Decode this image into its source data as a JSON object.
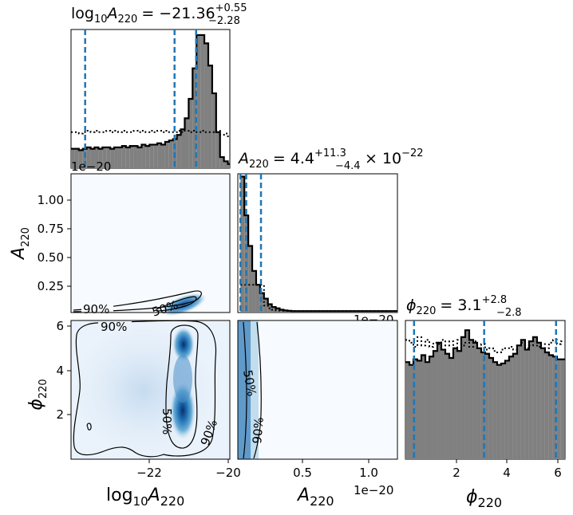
{
  "chart_data": {
    "type": "corner",
    "parameters": [
      "log10 A220",
      "A220",
      "phi220"
    ],
    "colors": {
      "histogram_fill": "#808080",
      "histogram_edge": "#000000",
      "quantile_line": "#1f77b4",
      "density_colormap": [
        "#f7fbff",
        "#c6dbef",
        "#6baed6",
        "#2171b5",
        "#08306b"
      ]
    },
    "panels": [
      {
        "id": "hist-log10A220",
        "type": "histogram",
        "title": {
          "prefix": "log",
          "base": "10",
          "var": "A",
          "sub": "220",
          "median": "= −21.36",
          "upper": "+0.55",
          "lower": "−2.28"
        },
        "median": -21.36,
        "quantiles": [
          -23.64,
          -21.36,
          -20.81
        ],
        "xlim": [
          -24.0,
          -19.95
        ],
        "ylim": [
          0,
          1.0
        ],
        "bins": {
          "start": -24.0,
          "width": 0.1
        },
        "posterior": [
          0.14,
          0.14,
          0.13,
          0.14,
          0.15,
          0.14,
          0.15,
          0.14,
          0.15,
          0.15,
          0.14,
          0.15,
          0.15,
          0.16,
          0.15,
          0.16,
          0.16,
          0.15,
          0.17,
          0.16,
          0.17,
          0.17,
          0.18,
          0.17,
          0.19,
          0.2,
          0.21,
          0.24,
          0.28,
          0.36,
          0.5,
          0.72,
          0.96,
          0.96,
          0.9,
          0.74,
          0.54,
          0.26,
          0.08,
          0.05,
          0.03,
          0.02
        ],
        "prior": [
          0.26,
          0.26,
          0.25,
          0.26,
          0.27,
          0.26,
          0.27,
          0.26,
          0.26,
          0.27,
          0.26,
          0.27,
          0.26,
          0.27,
          0.26,
          0.26,
          0.27,
          0.26,
          0.27,
          0.26,
          0.27,
          0.26,
          0.27,
          0.26,
          0.27,
          0.26,
          0.26,
          0.27,
          0.26,
          0.27,
          0.26,
          0.27,
          0.26,
          0.27,
          0.26,
          0.26,
          0.26,
          0.27,
          0.24,
          0.25,
          0.23,
          0.2
        ],
        "scale_text": "1e−20"
      },
      {
        "id": "hist-A220",
        "type": "histogram",
        "title": {
          "var": "A",
          "sub": "220",
          "median": "= 4.4",
          "upper": "+11.3",
          "lower": "−4.4",
          "factor": "× 10",
          "exponent": "−22"
        },
        "median": 0.044,
        "quantiles": [
          0.0,
          0.044,
          0.157
        ],
        "xlim": [
          -0.02,
          1.2
        ],
        "ylim": [
          0,
          1.0
        ],
        "bins": {
          "start": 0.0,
          "width": 0.03
        },
        "posterior": [
          0.98,
          0.7,
          0.48,
          0.3,
          0.2,
          0.14,
          0.1,
          0.06,
          0.04,
          0.03,
          0.02,
          0.015,
          0.012,
          0.01,
          0.01,
          0.01,
          0.01,
          0.01,
          0.01,
          0.01,
          0.01,
          0.01,
          0.01,
          0.01,
          0.01,
          0.01,
          0.01,
          0.01,
          0.01,
          0.01,
          0.01,
          0.01,
          0.01,
          0.01,
          0.01,
          0.01,
          0.01,
          0.01,
          0.01,
          0.01
        ],
        "prior": [
          0.2,
          0.2,
          0.2,
          0.2,
          0.2,
          0.2,
          0.05,
          0.03,
          0.02,
          0.015,
          0.013,
          0.012,
          0.011,
          0.011,
          0.011,
          0.011,
          0.011,
          0.011,
          0.011,
          0.011,
          0.011,
          0.011,
          0.011,
          0.011,
          0.011,
          0.011,
          0.011,
          0.011,
          0.011,
          0.011,
          0.011,
          0.011,
          0.011,
          0.011,
          0.011,
          0.011,
          0.011,
          0.011,
          0.011,
          0.011
        ],
        "scale_text": "1e−20"
      },
      {
        "id": "hist-phi220",
        "type": "histogram",
        "title": {
          "var": "ϕ",
          "sub": "220",
          "median": "= 3.1",
          "upper": "+2.8",
          "lower": "−2.8"
        },
        "median": 3.1,
        "quantiles": [
          0.34,
          3.1,
          5.93
        ],
        "xlim": [
          0.0,
          6.2832
        ],
        "ylim": [
          0,
          1.0
        ],
        "bins": {
          "start": 0.0,
          "width": 0.157
        },
        "posterior": [
          0.7,
          0.68,
          0.72,
          0.71,
          0.75,
          0.7,
          0.74,
          0.78,
          0.84,
          0.79,
          0.76,
          0.73,
          0.8,
          0.78,
          0.88,
          0.93,
          0.86,
          0.84,
          0.8,
          0.77,
          0.76,
          0.73,
          0.7,
          0.68,
          0.69,
          0.71,
          0.74,
          0.76,
          0.82,
          0.86,
          0.79,
          0.85,
          0.88,
          0.84,
          0.8,
          0.77,
          0.75,
          0.74,
          0.72,
          0.72
        ],
        "prior": [
          0.86,
          0.84,
          0.81,
          0.88,
          0.82,
          0.86,
          0.81,
          0.84,
          0.83,
          0.86,
          0.82,
          0.85,
          0.8,
          0.86,
          0.82,
          0.84,
          0.81,
          0.85,
          0.8,
          0.83,
          0.79,
          0.8,
          0.78,
          0.77,
          0.79,
          0.8,
          0.81,
          0.79,
          0.82,
          0.84,
          0.8,
          0.82,
          0.85,
          0.81,
          0.83,
          0.8,
          0.84,
          0.86,
          0.83,
          0.85
        ]
      },
      {
        "id": "kde-log10A220-A220",
        "type": "kde2d",
        "x_param": "log10 A220",
        "y_param": "A220",
        "xlim": [
          -24.0,
          -19.95
        ],
        "ylim": [
          0.0,
          1.22
        ],
        "yticks": [
          0.25,
          0.5,
          0.75,
          1.0
        ],
        "ytick_labels": [
          "0.25",
          "0.50",
          "0.75",
          "1.00"
        ],
        "y_scale_text": "1e−20",
        "ylabel": {
          "var": "A",
          "sub": "220"
        },
        "contour_labels": [
          "90%",
          "50%"
        ]
      },
      {
        "id": "kde-log10A220-phi220",
        "type": "kde2d",
        "x_param": "log10 A220",
        "y_param": "phi220",
        "xlim": [
          -24.0,
          -19.95
        ],
        "ylim": [
          0.0,
          6.2832
        ],
        "xticks": [
          -22,
          -20
        ],
        "xtick_labels": [
          "−22",
          "−20"
        ],
        "yticks": [
          2,
          4,
          6
        ],
        "ytick_labels": [
          "2",
          "4",
          "6"
        ],
        "xlabel": {
          "prefix": "log",
          "base": "10",
          "var": "A",
          "sub": "220"
        },
        "ylabel": {
          "var": "ϕ",
          "sub": "220"
        },
        "contour_labels": [
          "90%",
          "50%",
          "90%"
        ]
      },
      {
        "id": "kde-A220-phi220",
        "type": "kde2d",
        "x_param": "A220",
        "y_param": "phi220",
        "xlim": [
          -0.02,
          1.2
        ],
        "ylim": [
          0.0,
          6.2832
        ],
        "xticks": [
          0.5,
          1.0
        ],
        "xtick_labels": [
          "0.5",
          "1.0"
        ],
        "x_scale_text": "1e−20",
        "xlabel": {
          "var": "A",
          "sub": "220"
        },
        "contour_labels": [
          "50%",
          "90%"
        ]
      }
    ],
    "bottom_right_axis": {
      "xticks": [
        2,
        4,
        6
      ],
      "xtick_labels": [
        "2",
        "4",
        "6"
      ],
      "xlabel": {
        "var": "ϕ",
        "sub": "220"
      }
    }
  }
}
